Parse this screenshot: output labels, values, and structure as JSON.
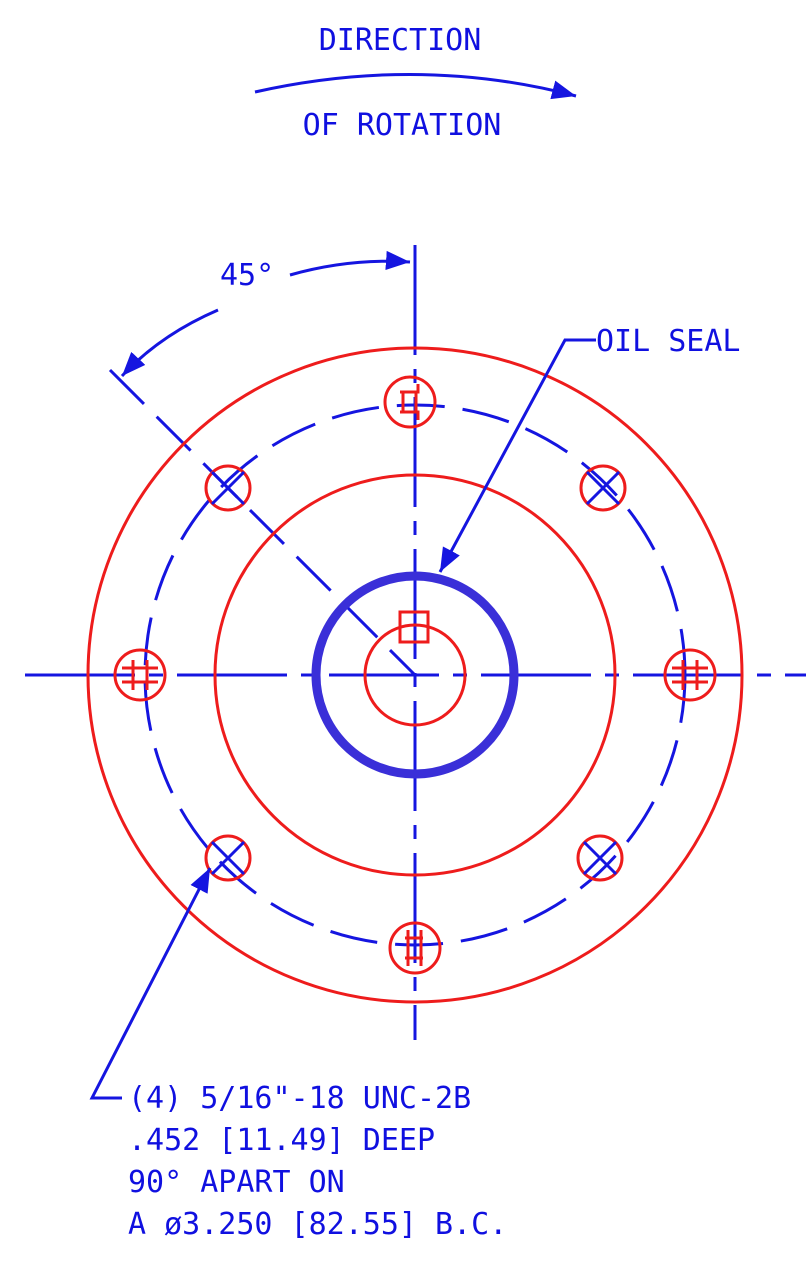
{
  "labels": {
    "direction": "DIRECTION",
    "rotation": "OF ROTATION",
    "angle": "45°",
    "oil_seal": "OIL SEAL"
  },
  "note": {
    "lines": [
      "(4) 5/16\"-18 UNC-2B",
      ".452 [11.49] DEEP",
      "90° APART ON",
      "A ø3.250 [82.55] B.C."
    ]
  }
}
